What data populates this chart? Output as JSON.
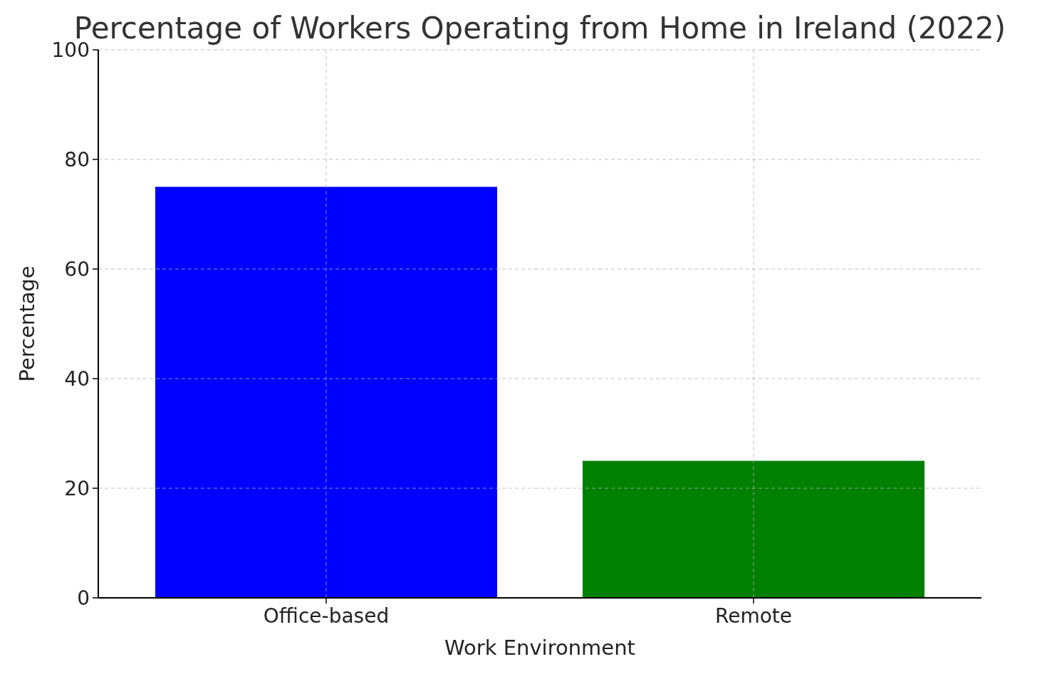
{
  "chart_data": {
    "type": "bar",
    "title": "Percentage of Workers Operating from Home in Ireland (2022)",
    "xlabel": "Work Environment",
    "ylabel": "Percentage",
    "categories": [
      "Office-based",
      "Remote"
    ],
    "values": [
      75,
      25
    ],
    "colors": [
      "#0000ff",
      "#008000"
    ],
    "ylim": [
      0,
      100
    ],
    "yticks": [
      0,
      20,
      40,
      60,
      80,
      100
    ],
    "grid": true
  }
}
